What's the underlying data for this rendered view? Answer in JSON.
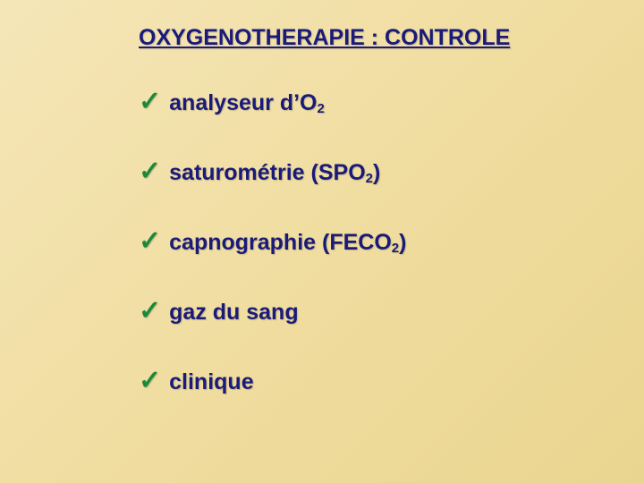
{
  "slide": {
    "title": "OXYGENOTHERAPIE : CONTROLE",
    "background_gradient": [
      "#f5e6b8",
      "#f0dda0",
      "#ead590"
    ],
    "title_color": "#1a1a7a",
    "title_fontsize": 25,
    "item_color": "#1a1a7a",
    "item_fontsize": 25,
    "check_color": "#1a8a3a",
    "check_glyph": "✓",
    "items": [
      {
        "text_pre": "analyseur d’O",
        "sub": "2",
        "text_post": ""
      },
      {
        "text_pre": "saturométrie (SPO",
        "sub": "2",
        "text_post": ")"
      },
      {
        "text_pre": "capnographie (FECO",
        "sub": "2",
        "text_post": ")"
      },
      {
        "text_pre": "gaz du sang",
        "sub": "",
        "text_post": ""
      },
      {
        "text_pre": "clinique",
        "sub": "",
        "text_post": ""
      }
    ]
  }
}
